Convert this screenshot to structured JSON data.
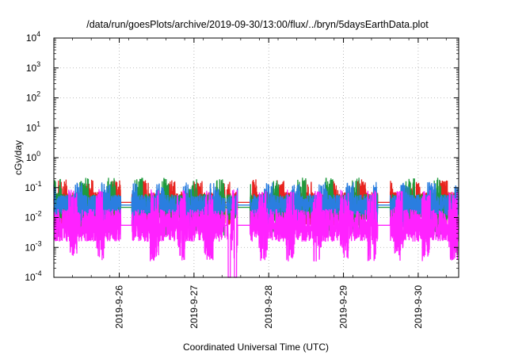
{
  "chart_data": {
    "type": "line",
    "title": "/data/run/goesPlots/archive/2019-09-30/13:00/flux/../bryn/5daysEarthData.plot",
    "xlabel": "Coordinated Universal Time (UTC)",
    "ylabel": "cGy/day",
    "x_range": [
      "2019-09-25 03:00",
      "2019-09-30 13:00"
    ],
    "x_ticks": [
      "2019-9-26",
      "2019-9-27",
      "2019-9-28",
      "2019-9-29",
      "2019-9-30"
    ],
    "y_scale": "log",
    "y_range": [
      0.0001,
      10000
    ],
    "y_ticks": [
      {
        "base": "10",
        "exp": "-4"
      },
      {
        "base": "10",
        "exp": "-3"
      },
      {
        "base": "10",
        "exp": "-2"
      },
      {
        "base": "10",
        "exp": "-1"
      },
      {
        "base": "10",
        "exp": "0"
      },
      {
        "base": "10",
        "exp": "1"
      },
      {
        "base": "10",
        "exp": "2"
      },
      {
        "base": "10",
        "exp": "3"
      },
      {
        "base": "10",
        "exp": "4"
      }
    ],
    "grid": true,
    "gaps": [
      {
        "start": "2019-09-26 00:30",
        "end": "2019-09-26 04:00"
      },
      {
        "start": "2019-09-27 10:00",
        "end": "2019-09-27 10:30"
      },
      {
        "start": "2019-09-27 14:00",
        "end": "2019-09-27 18:00"
      },
      {
        "start": "2019-09-29 11:00",
        "end": "2019-09-29 15:00"
      }
    ],
    "dropouts": [
      {
        "start": "2019-09-27 11:00",
        "end": "2019-09-27 11:40"
      },
      {
        "start": "2019-09-27 13:00",
        "end": "2019-09-27 13:40"
      }
    ],
    "series": [
      {
        "color": "#e8231e",
        "base_level": 0.032,
        "variation": 0.35
      },
      {
        "color": "#1e9a3c",
        "base_level": 0.022,
        "variation": 0.45
      },
      {
        "color": "#2a7ee0",
        "base_level": 0.026,
        "variation": 0.35
      },
      {
        "color": "#ff22ff",
        "base_level": 0.0055,
        "variation": 0.55
      }
    ]
  }
}
